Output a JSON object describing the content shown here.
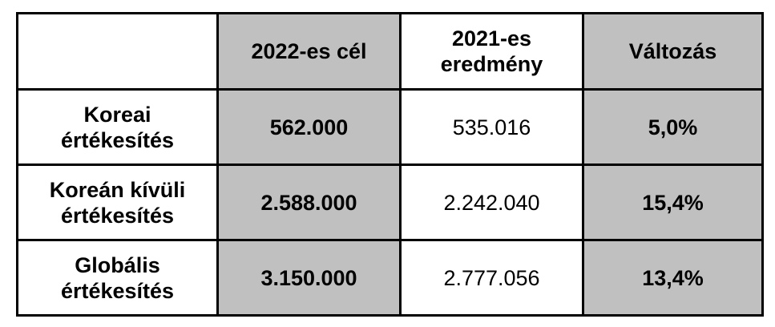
{
  "table": {
    "header": [
      "2022-es cél",
      "2021-es eredmény",
      "Változás"
    ],
    "rows": [
      [
        "Koreai értékesítés",
        "562.000",
        "535.016",
        "5,0%"
      ],
      [
        "Koreán kívüli értékesítés",
        "2.588.000",
        "2.242.040",
        "15,4%"
      ],
      [
        "Globális értékesítés",
        "3.150.000",
        "2.777.056",
        "13,4%"
      ]
    ]
  }
}
